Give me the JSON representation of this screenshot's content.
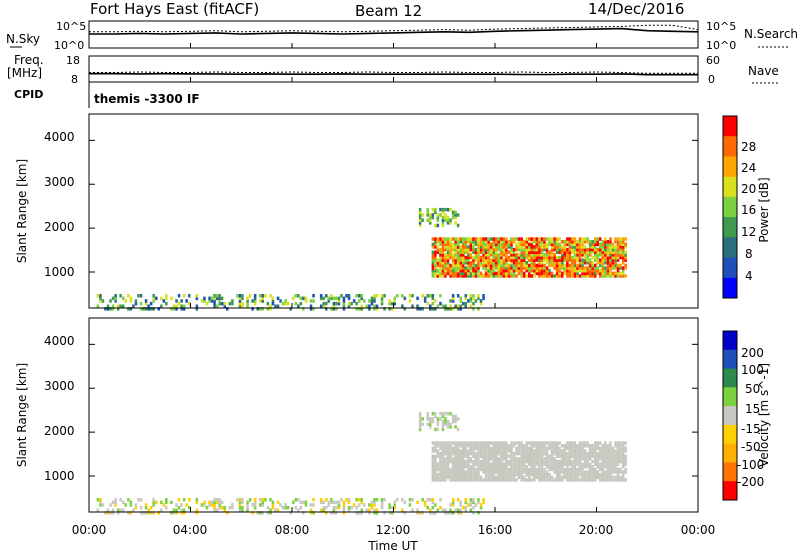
{
  "header": {
    "station": "Fort Hays East (fitACF)",
    "beam": "Beam 12",
    "date": "14/Dec/2016"
  },
  "noise_panel": {
    "left_label": "N.Sky",
    "left_ticks": [
      "10^5",
      "10^0"
    ],
    "right_label": "N.Search",
    "right_ticks": [
      "10^5",
      "10^0"
    ]
  },
  "freq_panel": {
    "left_label_line1": "Freq.",
    "left_label_line2": "[MHz]",
    "left_ticks": [
      "18",
      "8"
    ],
    "right_label": "Nave",
    "right_ticks": [
      "60",
      "0"
    ]
  },
  "cpid": {
    "label": "CPID",
    "value": "themis -3300 IF"
  },
  "x_axis": {
    "ticks": [
      "00:00",
      "04:00",
      "08:00",
      "12:00",
      "16:00",
      "20:00",
      "00:00"
    ],
    "label": "Time UT"
  },
  "power_panel": {
    "ylabel": "Slant Range [km]",
    "yticks": [
      "4000",
      "3000",
      "2000",
      "1000"
    ],
    "colorbar_label": "Power [dB]",
    "colorbar_ticks": [
      "28",
      "24",
      "20",
      "16",
      "12",
      "8",
      "4"
    ]
  },
  "velocity_panel": {
    "ylabel": "Slant Range [km]",
    "yticks": [
      "4000",
      "3000",
      "2000",
      "1000"
    ],
    "colorbar_label": "Velocity [m s^-1]",
    "colorbar_ticks": [
      "200",
      "100",
      "50",
      "15",
      "-15",
      "-50",
      "-100",
      "-200"
    ]
  },
  "chart_data": {
    "type": "heatmap",
    "x_unit": "hours UT",
    "xlim": [
      0,
      24
    ],
    "y_unit": "km",
    "ylim": [
      180,
      4600
    ],
    "power_colors": [
      "#0000ff",
      "#1f4fb8",
      "#2d6e7e",
      "#3f9a4f",
      "#7cd13f",
      "#d8e020",
      "#ffa500",
      "#ff6a00",
      "#ff0000"
    ],
    "power_scale_db": [
      0,
      30
    ],
    "velocity_colors": [
      "#ff0000",
      "#ff7300",
      "#ffb000",
      "#ffd000",
      "#c8c8c0",
      "#7cd13f",
      "#2d8a4f",
      "#1f4fb8",
      "#0000c8"
    ],
    "velocity_scale": [
      -250,
      250
    ],
    "regions": [
      {
        "name": "near-range ground scatter",
        "x": [
          0.3,
          15.5
        ],
        "y": [
          200,
          560
        ],
        "power_db": [
          4,
          20
        ],
        "velocity": [
          -60,
          60
        ],
        "density": 0.35
      },
      {
        "name": "main ionospheric echoes",
        "x": [
          13.5,
          21.2
        ],
        "y": [
          950,
          1850
        ],
        "power_db": [
          12,
          30
        ],
        "velocity": [
          -10,
          10
        ],
        "density": 0.9
      },
      {
        "name": "upper echoes",
        "x": [
          13.0,
          14.5
        ],
        "y": [
          2100,
          2500
        ],
        "power_db": [
          8,
          20
        ],
        "velocity": [
          -20,
          40
        ],
        "density": 0.5
      }
    ],
    "noise_sky": [
      2.6,
      2.6,
      2.7,
      2.6,
      2.7,
      2.8,
      2.6,
      2.7,
      2.8,
      2.7,
      2.6,
      2.7,
      2.8,
      2.9,
      3.0,
      2.9,
      3.1,
      3.2,
      3.3,
      3.4,
      3.5,
      3.6,
      3.2,
      3.1,
      3.0
    ],
    "noise_search": [
      3.0,
      3.0,
      3.1,
      3.0,
      3.1,
      3.2,
      3.0,
      3.1,
      3.2,
      3.1,
      3.0,
      3.1,
      3.2,
      3.3,
      3.4,
      3.3,
      3.5,
      3.6,
      3.7,
      3.8,
      3.9,
      4.0,
      4.2,
      4.2,
      3.4
    ],
    "frequency_mhz": [
      11.2,
      11.2,
      11.1,
      11.2,
      11.1,
      11.1,
      11.0,
      11.1,
      11.0,
      11.0,
      11.1,
      11.0,
      11.0,
      11.0,
      11.0,
      11.0,
      11.0,
      10.9,
      10.9,
      11.0,
      11.0,
      11.1,
      10.8,
      10.8,
      10.8
    ],
    "nave": [
      22,
      22,
      23,
      22,
      22,
      23,
      22,
      22,
      23,
      22,
      22,
      23,
      22,
      22,
      23,
      22,
      22,
      23,
      22,
      22,
      23,
      22,
      20,
      20,
      20
    ]
  }
}
